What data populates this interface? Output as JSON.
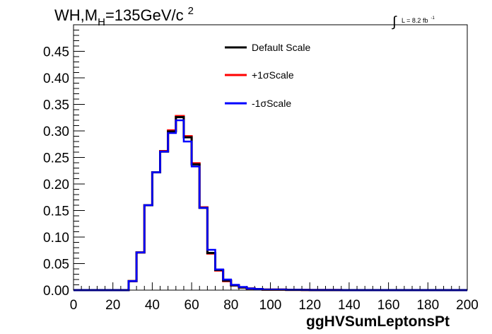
{
  "chart_data": {
    "type": "line",
    "title": {
      "main": "WH,M",
      "subscript": "H",
      "rest": "=135GeV/c",
      "superscript": "2"
    },
    "luminosity": {
      "symbol": "∫",
      "text": "L = 8.2 fb",
      "superscript": "-1"
    },
    "xlabel": "ggHVSumLeptonsPt",
    "ylabel": "",
    "xlim": [
      0,
      200
    ],
    "ylim": [
      0,
      0.5
    ],
    "x_ticks": [
      0,
      20,
      40,
      60,
      80,
      100,
      120,
      140,
      160,
      180,
      200
    ],
    "x_tick_labels": [
      "0",
      "20",
      "40",
      "60",
      "80",
      "100",
      "120",
      "140",
      "160",
      "180",
      "200"
    ],
    "y_ticks": [
      0,
      0.05,
      0.1,
      0.15,
      0.2,
      0.25,
      0.3,
      0.35,
      0.4,
      0.45
    ],
    "y_tick_labels": [
      "0.00",
      "0.05",
      "0.10",
      "0.15",
      "0.20",
      "0.25",
      "0.30",
      "0.35",
      "0.40",
      "0.45"
    ],
    "grid": false,
    "legend_position": "top-center",
    "bin_width": 4,
    "bin_edges_start": 0,
    "series": [
      {
        "name": "Default Scale",
        "color": "#000000",
        "values": [
          0,
          0,
          0,
          0,
          0,
          0,
          0,
          0.017,
          0.071,
          0.16,
          0.222,
          0.261,
          0.299,
          0.326,
          0.288,
          0.237,
          0.155,
          0.07,
          0.038,
          0.018,
          0.009,
          0.005,
          0.003,
          0.002,
          0.001,
          0.001,
          0.001,
          0.0005,
          0.0005,
          0.0003,
          0.0002,
          0.0001,
          0.0001,
          0.0001,
          0,
          0,
          0,
          0,
          0,
          0,
          0,
          0,
          0,
          0,
          0,
          0,
          0,
          0,
          0,
          0
        ]
      },
      {
        "name": "+1σScale",
        "color": "#ff0000",
        "values": [
          0,
          0,
          0,
          0,
          0,
          0,
          0,
          0.017,
          0.071,
          0.16,
          0.222,
          0.262,
          0.301,
          0.328,
          0.29,
          0.239,
          0.156,
          0.069,
          0.037,
          0.017,
          0.009,
          0.005,
          0.003,
          0.002,
          0.001,
          0.001,
          0.001,
          0.0005,
          0.0005,
          0.0003,
          0.0002,
          0.0001,
          0.0001,
          0.0001,
          0,
          0,
          0,
          0,
          0,
          0,
          0,
          0,
          0,
          0,
          0,
          0,
          0,
          0,
          0,
          0
        ]
      },
      {
        "name": "-1σScale",
        "color": "#0000ff",
        "values": [
          0,
          0,
          0,
          0,
          0,
          0,
          0,
          0.017,
          0.071,
          0.16,
          0.222,
          0.261,
          0.296,
          0.32,
          0.28,
          0.233,
          0.155,
          0.076,
          0.039,
          0.02,
          0.01,
          0.006,
          0.003,
          0.002,
          0.001,
          0.001,
          0.001,
          0.0005,
          0.0005,
          0.0003,
          0.0002,
          0.0001,
          0.0001,
          0.0001,
          0,
          0,
          0,
          0,
          0,
          0,
          0,
          0,
          0,
          0,
          0,
          0,
          0,
          0,
          0,
          0
        ]
      }
    ]
  }
}
